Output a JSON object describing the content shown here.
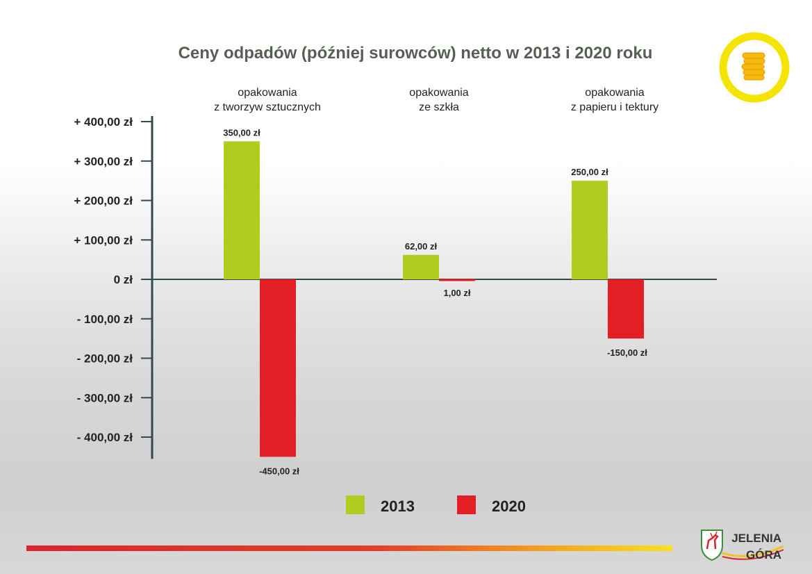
{
  "chart_data": {
    "type": "bar",
    "title": "Ceny odpadów (później surowców) netto w 2013 i 2020 roku",
    "categories": [
      [
        "opakowania",
        "z tworzyw sztucznych"
      ],
      [
        "opakowania",
        "ze szkła"
      ],
      [
        "opakowania",
        "z papieru i tektury"
      ]
    ],
    "series": [
      {
        "name": "2013",
        "color": "#b2cb1f",
        "values": [
          350,
          62,
          250
        ],
        "labels": [
          "350,00 zł",
          "62,00 zł",
          "250,00 zł"
        ]
      },
      {
        "name": "2020",
        "color": "#e31e24",
        "values": [
          -450,
          1,
          -150
        ],
        "labels": [
          "-450,00 zł",
          "1,00 zł",
          "-150,00 zł"
        ]
      }
    ],
    "ylim": [
      -450,
      400
    ],
    "yticks": [
      400,
      300,
      200,
      100,
      0,
      -100,
      -200,
      -300,
      -400
    ],
    "yticklabels": [
      "+ 400,00 zł",
      "+ 300,00 zł",
      "+ 200,00 zł",
      "+ 100,00 zł",
      "0 zł",
      "- 100,00 zł",
      "- 200,00 zł",
      "- 300,00 zł",
      "- 400,00 zł"
    ],
    "legend_position": "bottom-center",
    "grid": false
  },
  "branding": {
    "logo_line1": "JELENIA",
    "logo_line2": "GÓRA",
    "coin_icon": "coins-icon",
    "crest_icon": "deer-crest-icon",
    "accent_ring_color": "#f5e400"
  }
}
